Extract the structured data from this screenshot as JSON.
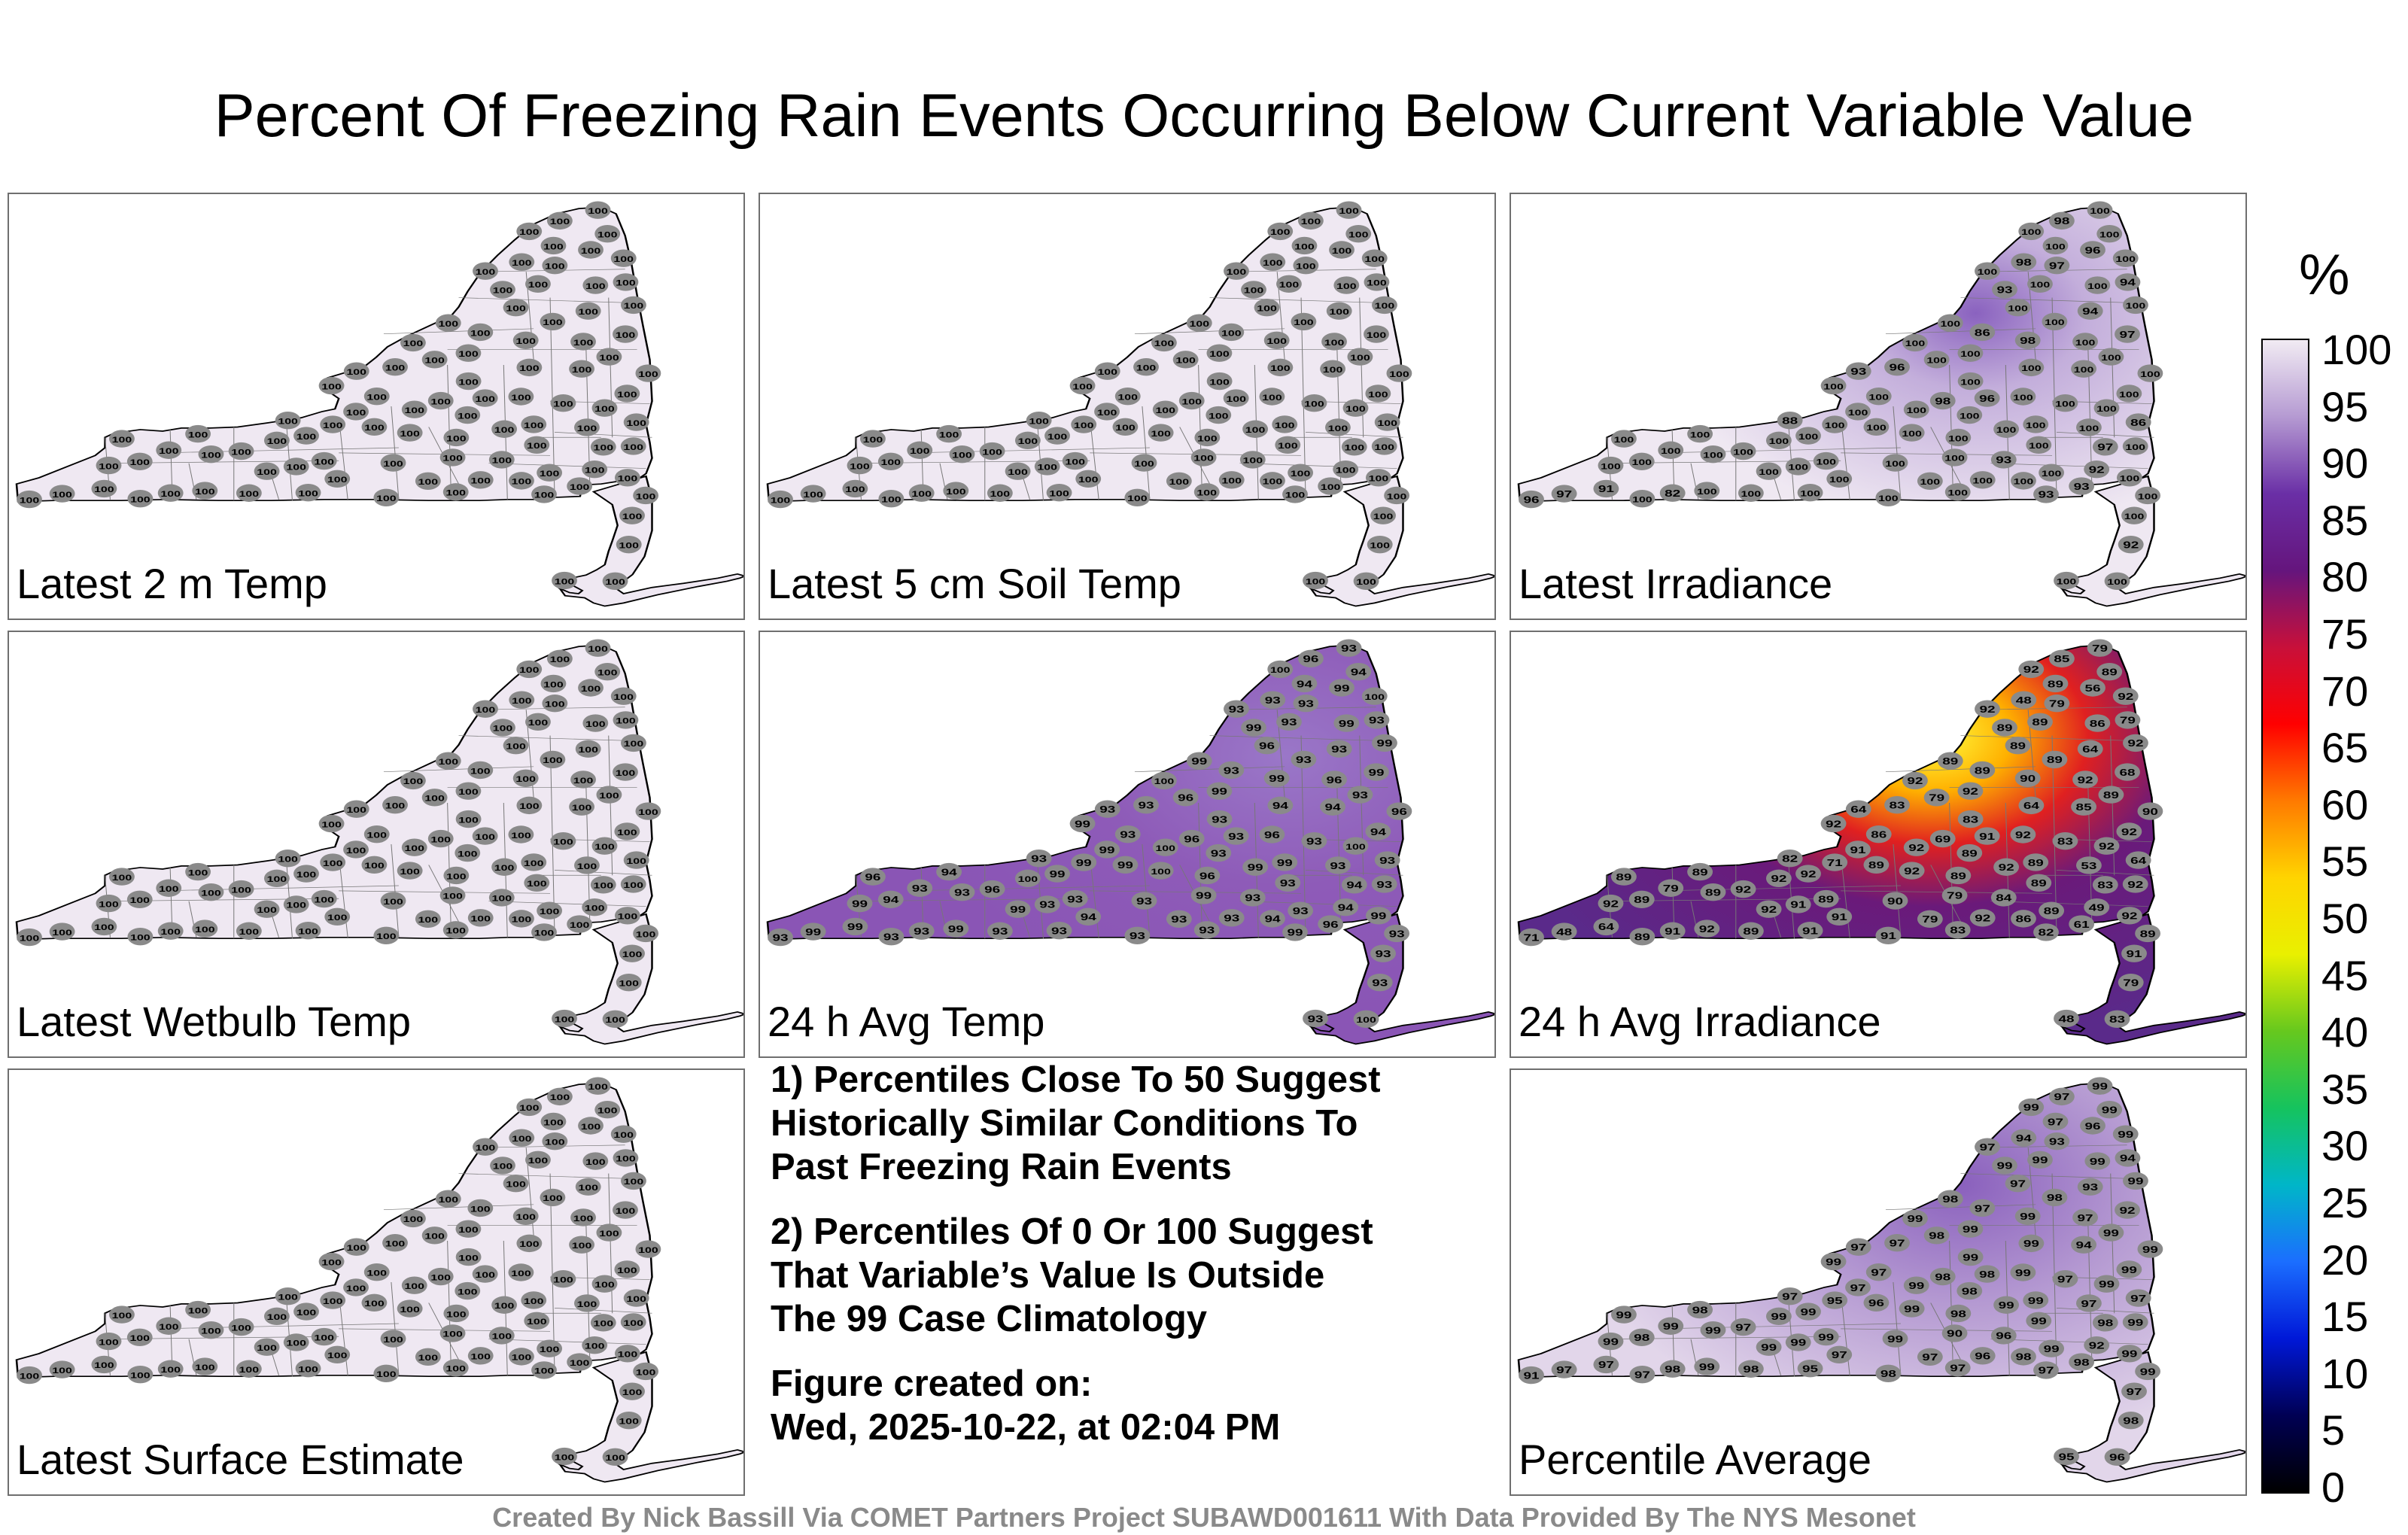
{
  "title": "Percent Of Freezing Rain Events Occurring Below Current Variable Value",
  "panels": [
    {
      "label": "Latest 2 m Temp",
      "scheme": "uniform",
      "values": [
        100,
        100,
        100,
        100,
        100,
        100,
        100,
        100,
        100,
        100,
        100,
        100,
        100,
        100,
        100,
        100,
        100,
        100,
        100,
        100,
        100,
        100,
        100,
        100,
        100,
        100,
        100,
        100,
        100,
        100,
        100,
        100,
        100,
        100,
        100,
        100,
        100,
        100,
        100,
        100,
        100,
        100,
        100,
        100,
        100,
        100,
        100,
        100,
        100,
        100,
        100,
        100,
        100,
        100,
        100,
        100,
        100,
        100,
        100,
        100,
        100,
        100,
        100,
        100,
        100,
        100,
        100,
        100,
        100,
        100,
        100,
        100,
        100,
        100,
        100,
        100,
        100,
        100,
        100,
        100,
        100,
        100,
        100,
        100,
        100,
        100,
        100,
        100,
        100,
        100,
        100,
        100,
        100,
        100,
        100
      ]
    },
    {
      "label": "Latest 5 cm Soil Temp",
      "scheme": "uniform",
      "values": [
        100,
        100,
        100,
        100,
        100,
        100,
        100,
        100,
        100,
        100,
        100,
        100,
        100,
        100,
        100,
        100,
        100,
        100,
        100,
        100,
        100,
        100,
        100,
        100,
        100,
        100,
        100,
        100,
        100,
        100,
        100,
        100,
        100,
        100,
        100,
        100,
        100,
        100,
        100,
        100,
        100,
        100,
        100,
        100,
        100,
        100,
        100,
        100,
        100,
        100,
        100,
        100,
        100,
        100,
        100,
        100,
        100,
        100,
        100,
        100,
        100,
        100,
        100,
        100,
        100,
        100,
        100,
        100,
        100,
        100,
        100,
        100,
        100,
        100,
        100,
        100,
        100,
        100,
        100,
        100,
        100,
        100,
        100,
        100,
        100,
        100,
        100,
        100,
        100,
        100,
        100,
        100,
        100,
        100,
        100
      ]
    },
    {
      "label": "Latest Irradiance",
      "scheme": "irradiance",
      "values": [
        100,
        96,
        100,
        100,
        94,
        88,
        93,
        100,
        97,
        100,
        100,
        94,
        97,
        98,
        96,
        100,
        93,
        98,
        92,
        100,
        100,
        86,
        100,
        93,
        100,
        82,
        100,
        97,
        96,
        91,
        98,
        96,
        100,
        100,
        97,
        100,
        100,
        100,
        93,
        100,
        100,
        100,
        100,
        100,
        92,
        100,
        100,
        86,
        100,
        100,
        100,
        100,
        98,
        93,
        100,
        100,
        100,
        100,
        100,
        100,
        100,
        100,
        100,
        100,
        100,
        100,
        100,
        100,
        100,
        100,
        100,
        100,
        100,
        100,
        100,
        100,
        100,
        100,
        100,
        100,
        100,
        100,
        100,
        100,
        100,
        100,
        100,
        100,
        100,
        100,
        100,
        100,
        100,
        100,
        100
      ]
    },
    {
      "label": "Latest Wetbulb Temp",
      "scheme": "uniform",
      "values": [
        100,
        100,
        100,
        100,
        100,
        100,
        100,
        100,
        100,
        100,
        100,
        100,
        100,
        100,
        100,
        100,
        100,
        100,
        100,
        100,
        100,
        100,
        100,
        100,
        100,
        100,
        100,
        100,
        100,
        100,
        100,
        100,
        100,
        100,
        100,
        100,
        100,
        100,
        100,
        100,
        100,
        100,
        100,
        100,
        100,
        100,
        100,
        100,
        100,
        100,
        100,
        100,
        100,
        100,
        100,
        100,
        100,
        100,
        100,
        100,
        100,
        100,
        100,
        100,
        100,
        100,
        100,
        100,
        100,
        100,
        100,
        100,
        100,
        100,
        100,
        100,
        100,
        100,
        100,
        100,
        100,
        100,
        100,
        100,
        100,
        100,
        100,
        100,
        100,
        100,
        100,
        100,
        100,
        100,
        100
      ]
    },
    {
      "label": "24 h Avg Temp",
      "scheme": "avgtemp",
      "values": [
        99,
        93,
        93,
        100,
        93,
        93,
        93,
        99,
        99,
        93,
        93,
        93,
        93,
        93,
        93,
        93,
        93,
        96,
        94,
        94,
        94,
        93,
        96,
        96,
        94,
        93,
        93,
        99,
        99,
        99,
        96,
        93,
        93,
        94,
        94,
        94,
        94,
        99,
        99,
        99,
        96,
        93,
        93,
        93,
        93,
        93,
        96,
        93,
        93,
        96,
        94,
        99,
        99,
        99,
        96,
        93,
        93,
        93,
        93,
        93,
        93,
        93,
        93,
        93,
        96,
        96,
        99,
        99,
        99,
        93,
        93,
        93,
        93,
        93,
        93,
        93,
        93,
        94,
        94,
        96,
        99,
        99,
        99,
        100,
        100,
        100,
        100,
        100,
        100,
        100,
        99,
        99,
        99,
        99,
        99
      ]
    },
    {
      "label": "24 h Avg Irradiance",
      "scheme": "avgirr",
      "values": [
        71,
        83,
        86,
        83,
        79,
        82,
        84,
        79,
        68,
        48,
        83,
        64,
        79,
        48,
        71,
        91,
        64,
        69,
        49,
        85,
        91,
        64,
        79,
        61,
        89,
        91,
        53,
        48,
        56,
        64,
        85,
        91,
        79,
        64,
        83,
        86,
        89,
        89,
        82,
        91,
        92,
        89,
        90,
        91,
        79,
        89,
        89,
        89,
        91,
        92,
        89,
        89,
        90,
        89,
        89,
        91,
        92,
        92,
        89,
        79,
        83,
        89,
        89,
        89,
        90,
        89,
        89,
        86,
        92,
        92,
        89,
        89,
        89,
        79,
        83,
        89,
        89,
        89,
        92,
        92,
        92,
        92,
        92,
        92,
        92,
        92,
        92,
        92,
        92,
        92,
        92,
        92,
        92,
        92,
        92
      ]
    },
    {
      "label": "Latest Surface Estimate",
      "scheme": "uniform",
      "values": [
        100,
        100,
        100,
        100,
        100,
        100,
        100,
        100,
        100,
        100,
        100,
        100,
        100,
        100,
        100,
        100,
        100,
        100,
        100,
        100,
        100,
        100,
        100,
        100,
        100,
        100,
        100,
        100,
        100,
        100,
        100,
        100,
        100,
        100,
        100,
        100,
        100,
        100,
        100,
        100,
        100,
        100,
        100,
        100,
        100,
        100,
        100,
        100,
        100,
        100,
        100,
        100,
        100,
        100,
        100,
        100,
        100,
        100,
        100,
        100,
        100,
        100,
        100,
        100,
        100,
        100,
        100,
        100,
        100,
        100,
        100,
        100,
        100,
        100,
        100,
        100,
        100,
        100,
        100,
        100,
        100,
        100,
        100,
        100,
        100,
        100,
        100,
        100,
        100,
        100,
        100,
        100,
        100,
        100,
        100
      ]
    },
    {
      "label": "Percentile Average",
      "scheme": "average",
      "values": [
        95,
        97,
        97,
        96,
        94,
        97,
        96,
        90,
        92,
        95,
        97,
        93,
        93,
        94,
        91,
        95,
        97,
        98,
        92,
        94,
        97,
        97,
        98,
        98,
        98,
        98,
        97,
        97,
        96,
        97,
        97,
        98,
        99,
        99,
        98,
        98,
        98,
        96,
        97,
        97,
        97,
        99,
        99,
        99,
        98,
        98,
        97,
        97,
        97,
        97,
        97,
        98,
        99,
        99,
        98,
        98,
        96,
        97,
        97,
        97,
        97,
        98,
        98,
        99,
        99,
        99,
        99,
        99,
        99,
        99,
        99,
        99,
        99,
        99,
        99,
        99,
        99,
        99,
        99,
        99,
        99,
        99,
        99,
        99,
        99,
        99,
        99,
        99,
        99,
        99,
        99,
        99,
        99,
        99,
        99
      ]
    }
  ],
  "notes": {
    "line1": "1) Percentiles Close To 50 Suggest",
    "line2": "Historically Similar Conditions To",
    "line3": "Past Freezing Rain Events",
    "line4": "2) Percentiles Of 0 Or 100 Suggest",
    "line5": "That Variable’s Value Is Outside",
    "line6": "The 99 Case Climatology",
    "line7": "Figure created on:",
    "line8": "Wed, 2025-10-22, at 02:04 PM"
  },
  "colorbar": {
    "title": "%",
    "ticks": [
      "100",
      "95",
      "90",
      "85",
      "80",
      "75",
      "70",
      "65",
      "60",
      "55",
      "50",
      "45",
      "40",
      "35",
      "30",
      "25",
      "20",
      "15",
      "10",
      "5",
      "0"
    ],
    "stops": [
      "#f1ebf3",
      "#b59ad2",
      "#6a2fa6",
      "#65157d",
      "#c8103a",
      "#ff0000",
      "#ff7a00",
      "#ffd400",
      "#e9f000",
      "#66c81e",
      "#15c35e",
      "#00b6c8",
      "#1b6eff",
      "#0018d8",
      "#000054",
      "#000000"
    ]
  },
  "credit": "Created By Nick Bassill Via COMET Partners Project SUBAWD001611 With Data Provided By The NYS Mesonet"
}
